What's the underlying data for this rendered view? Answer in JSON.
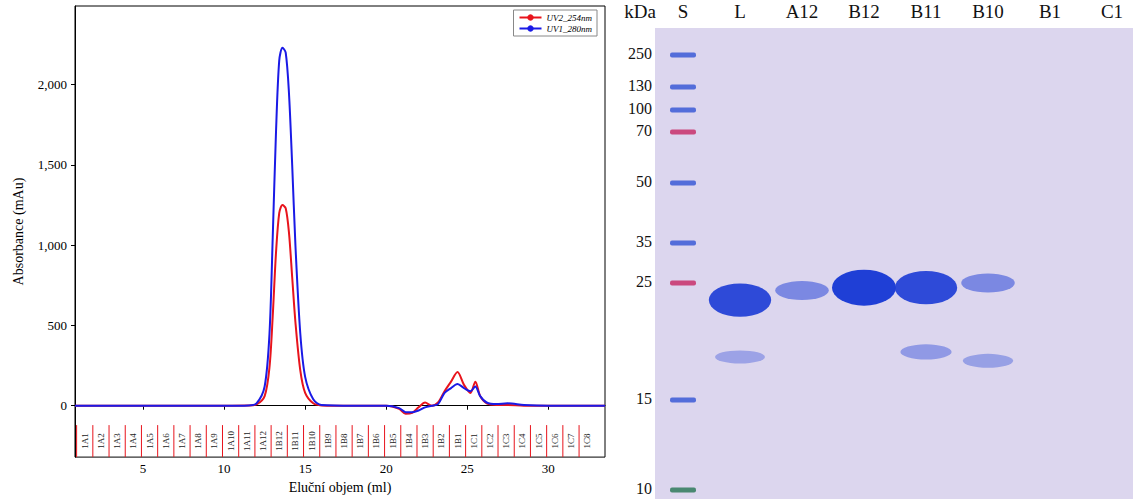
{
  "chart_data": {
    "type": "line",
    "x_label": "Eluční objem (ml)",
    "y_label": "Absorbance (mAu)",
    "xlim": [
      0.8,
      33.5
    ],
    "xticks": [
      5,
      10,
      15,
      20,
      25,
      30
    ],
    "ylim": [
      -320,
      2490
    ],
    "yticks": [
      0,
      500,
      1000,
      1500,
      2000
    ],
    "grid": false,
    "legend": "upper right",
    "series": [
      {
        "name": "UV2_254nm",
        "color": "#e8141c",
        "x": [
          0.8,
          5,
          10,
          11.5,
          12,
          12.5,
          12.8,
          13,
          13.2,
          13.4,
          13.6,
          13.8,
          14,
          14.2,
          14.4,
          14.7,
          15,
          15.5,
          16,
          18,
          20,
          20.8,
          21.2,
          21.6,
          22,
          22.4,
          22.8,
          23.2,
          23.6,
          24,
          24.4,
          24.8,
          25.2,
          25.5,
          25.8,
          26.2,
          26.8,
          27.5,
          28.5,
          30,
          33.5
        ],
        "values": [
          0,
          0,
          0,
          1,
          8,
          60,
          240,
          560,
          950,
          1200,
          1250,
          1230,
          1080,
          800,
          520,
          220,
          80,
          15,
          2,
          0,
          0,
          -20,
          -50,
          -45,
          -10,
          20,
          0,
          20,
          90,
          150,
          210,
          130,
          80,
          150,
          60,
          15,
          5,
          5,
          0,
          0,
          0
        ]
      },
      {
        "name": "UV1_280nm",
        "color": "#1a1ae6",
        "x": [
          0.8,
          5,
          10,
          11.5,
          12,
          12.5,
          12.8,
          13,
          13.2,
          13.4,
          13.6,
          13.8,
          14,
          14.2,
          14.4,
          14.7,
          15,
          15.5,
          16,
          18,
          20,
          20.8,
          21.2,
          21.6,
          22,
          22.4,
          22.8,
          23.2,
          23.6,
          24,
          24.4,
          24.8,
          25.2,
          25.5,
          25.8,
          26.2,
          26.8,
          27.5,
          28.5,
          30,
          33.5
        ],
        "values": [
          0,
          0,
          0,
          2,
          15,
          120,
          450,
          1050,
          1700,
          2150,
          2230,
          2200,
          1950,
          1500,
          1000,
          450,
          180,
          40,
          5,
          0,
          0,
          -15,
          -40,
          -40,
          -30,
          -10,
          0,
          10,
          80,
          110,
          135,
          110,
          90,
          120,
          60,
          20,
          10,
          15,
          5,
          0,
          0
        ]
      }
    ],
    "fractions": {
      "color": "#e8141c",
      "labels": [
        "1A1",
        "1A2",
        "1A3",
        "1A4",
        "1A5",
        "1A6",
        "1A7",
        "1A8",
        "1A9",
        "1A10",
        "1A11",
        "1A12",
        "1B12",
        "1B11",
        "1B10",
        "1B9",
        "1B8",
        "1B7",
        "1B6",
        "1B5",
        "1B4",
        "1B3",
        "1B2",
        "1B1",
        "1C1",
        "1C2",
        "1C3",
        "1C4",
        "1C5",
        "1C6",
        "1C7",
        "1C8"
      ],
      "starts": [
        0.9,
        1.9,
        2.9,
        3.9,
        4.9,
        5.9,
        6.9,
        7.9,
        8.9,
        9.9,
        10.9,
        11.9,
        12.9,
        13.9,
        14.9,
        15.9,
        16.9,
        17.9,
        18.9,
        19.9,
        20.9,
        21.9,
        22.9,
        23.9,
        24.9,
        25.9,
        26.9,
        27.9,
        28.9,
        29.9,
        30.9,
        31.9
      ]
    }
  },
  "gel": {
    "unit": "kDa",
    "lanes": [
      "S",
      "L",
      "A12",
      "B12",
      "B11",
      "B10",
      "B1",
      "C1"
    ],
    "ladder": [
      {
        "kda": 250,
        "color": "#3b5bd6"
      },
      {
        "kda": 130,
        "color": "#3b5bd6"
      },
      {
        "kda": 100,
        "color": "#3b5bd6"
      },
      {
        "kda": 70,
        "color": "#c8306a"
      },
      {
        "kda": 50,
        "color": "#3b5bd6"
      },
      {
        "kda": 35,
        "color": "#3b5bd6"
      },
      {
        "kda": 25,
        "color": "#c8306a"
      },
      {
        "kda": 15,
        "color": "#3b5bd6"
      },
      {
        "kda": 10,
        "color": "#2f7a5a"
      }
    ],
    "bands": [
      {
        "lane": "L",
        "kda": 23.2,
        "strength": 0.9
      },
      {
        "lane": "L",
        "kda": 18.1,
        "strength": 0.12
      },
      {
        "lane": "A12",
        "kda": 24.2,
        "strength": 0.35
      },
      {
        "lane": "B12",
        "kda": 24.5,
        "strength": 1.0
      },
      {
        "lane": "B11",
        "kda": 24.5,
        "strength": 0.9
      },
      {
        "lane": "B11",
        "kda": 18.5,
        "strength": 0.2
      },
      {
        "lane": "B10",
        "kda": 25,
        "strength": 0.35
      },
      {
        "lane": "B10",
        "kda": 17.8,
        "strength": 0.15
      }
    ]
  }
}
